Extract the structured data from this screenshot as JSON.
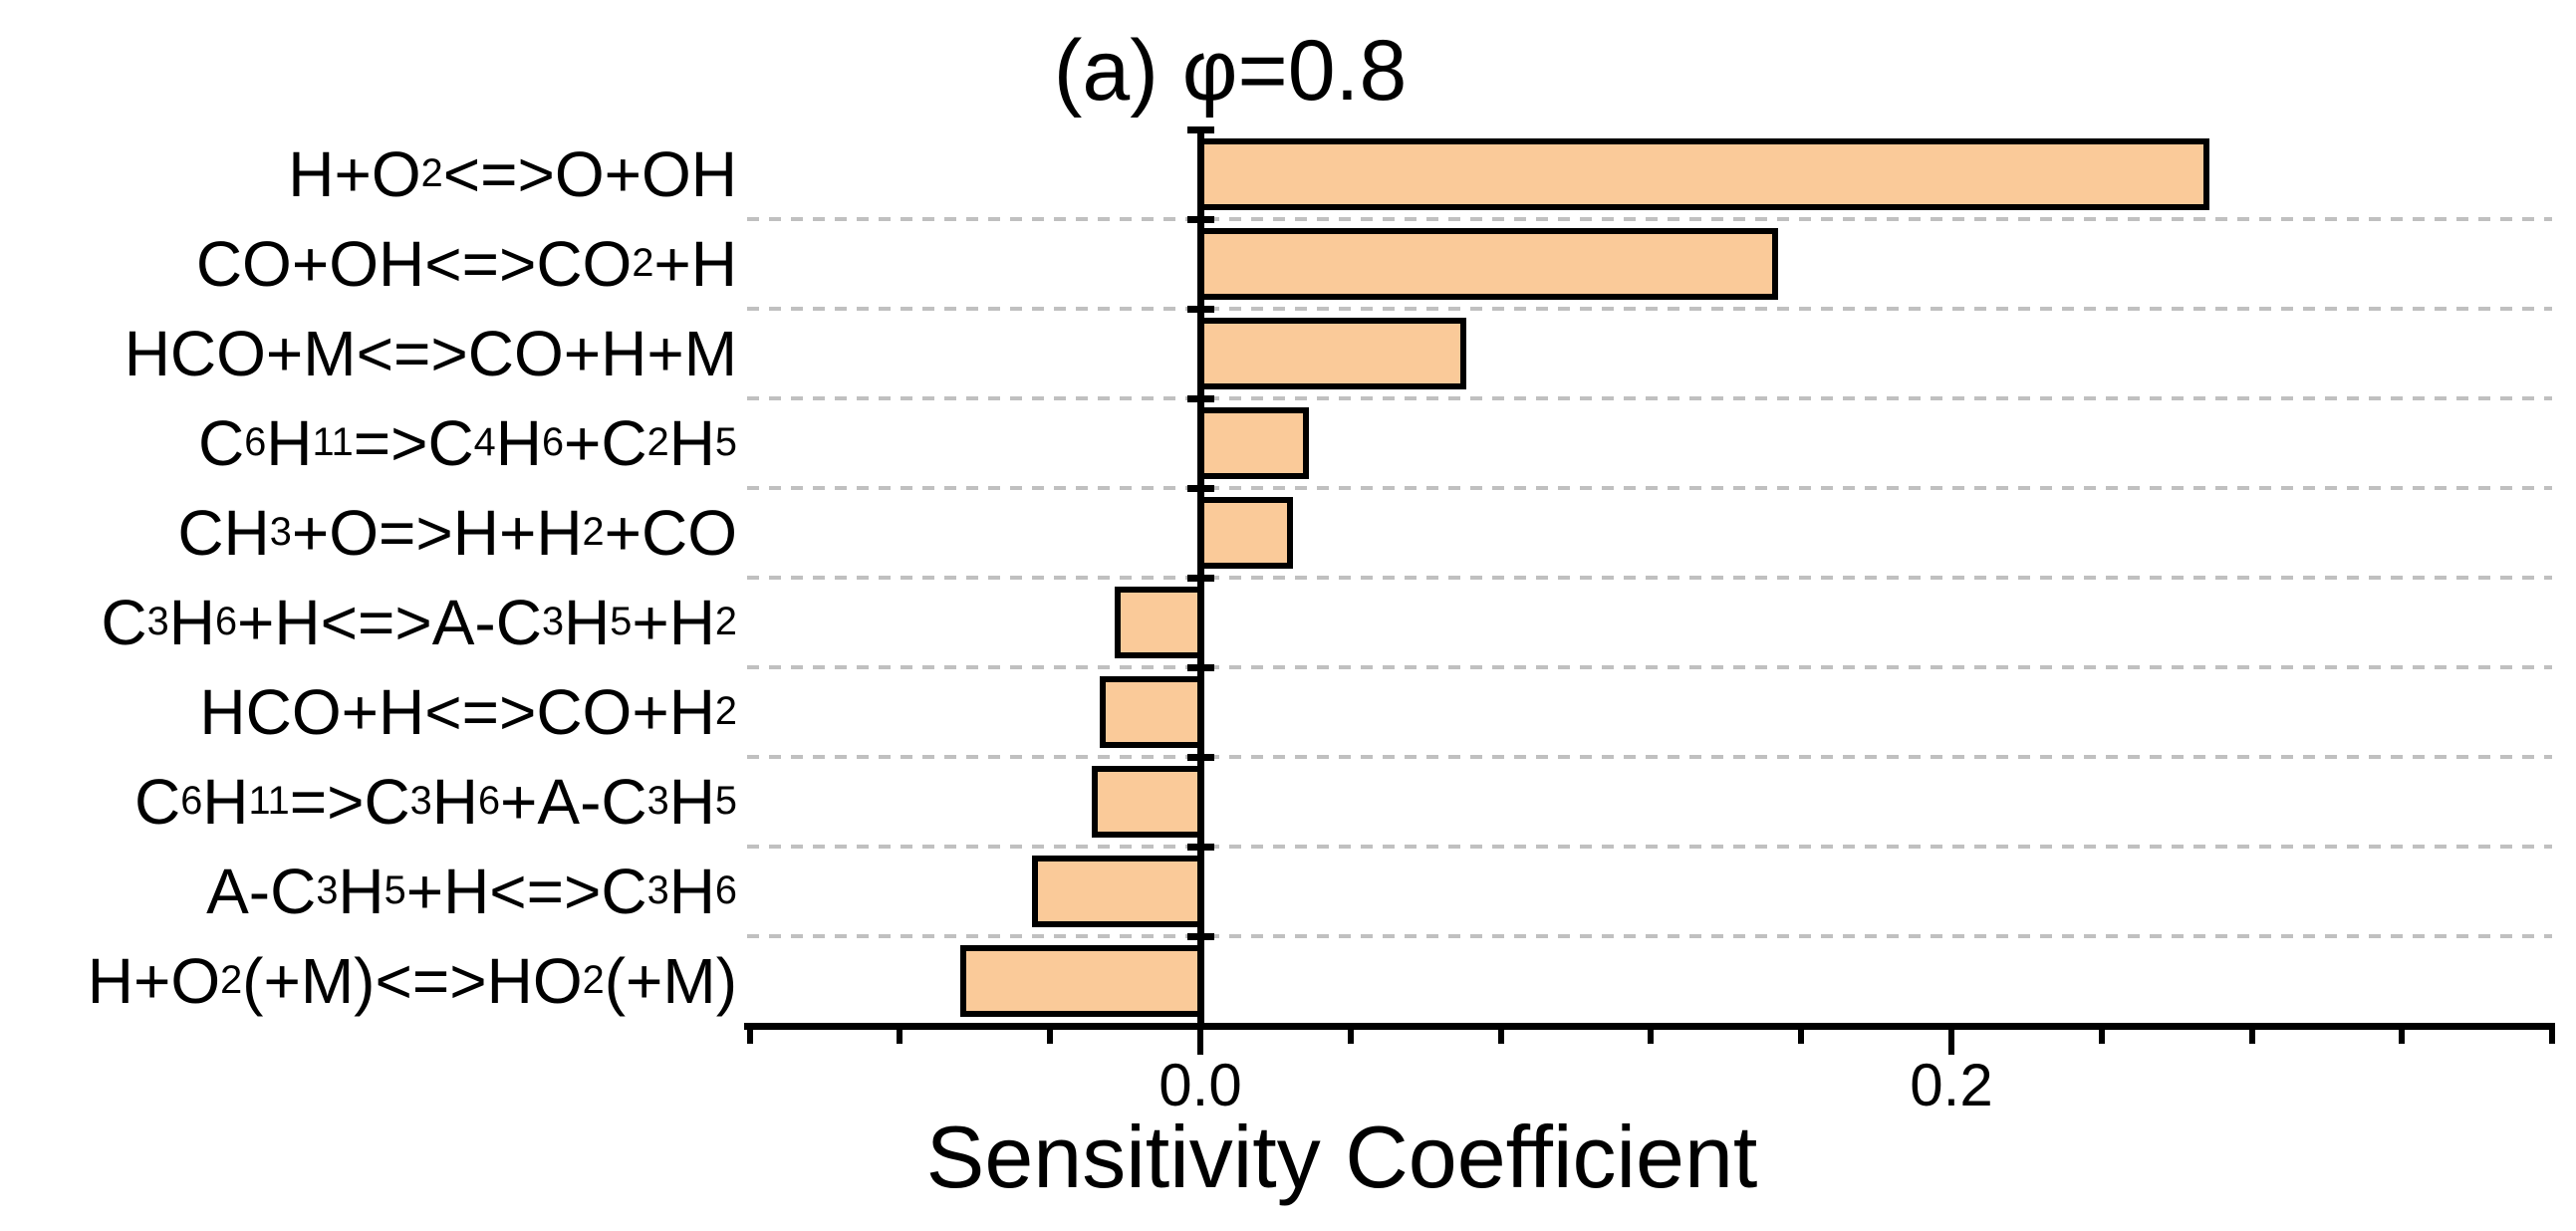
{
  "figure": {
    "title": "(a) φ=0.8",
    "xlabel": "Sensitivity Coefficient"
  },
  "chart_data": {
    "type": "bar",
    "orientation": "horizontal",
    "title": "(a) φ=0.8",
    "xlabel": "Sensitivity Coefficient",
    "subscript_markup": "text between ~ ~ is subscript",
    "categories": [
      "H+O~2~<=>O+OH",
      "CO+OH<=>CO~2~+H",
      "HCO+M<=>CO+H+M",
      "C~6~H~11~=>C~4~H~6~+C~2~H~5~",
      "CH~3~+O=>H+H~2~+CO",
      "C~3~H~6~+H<=>A-C~3~H~5~+H~2~",
      "HCO+H<=>CO+H~2~",
      "C~6~H~11~=>C~3~H~6~+A-C~3~H~5~",
      "A-C~3~H~5~+H<=>C~3~H~6~",
      "H+O~2~(+M)<=>HO~2~(+M)"
    ],
    "values": [
      0.268,
      0.153,
      0.07,
      0.028,
      0.024,
      -0.022,
      -0.026,
      -0.028,
      -0.044,
      -0.063
    ],
    "xlim": [
      -0.12,
      0.36
    ],
    "x_major_ticks": [
      {
        "value": 0.0,
        "label": "0.0"
      },
      {
        "value": 0.2,
        "label": "0.2"
      }
    ],
    "x_minor_tick_step": 0.04,
    "grid": "horizontal-dashed",
    "colors": {
      "bar_fill": "#FACA99",
      "bar_border": "#000000",
      "gridline": "#c0c0c0",
      "axis": "#000000",
      "text": "#000000"
    }
  }
}
